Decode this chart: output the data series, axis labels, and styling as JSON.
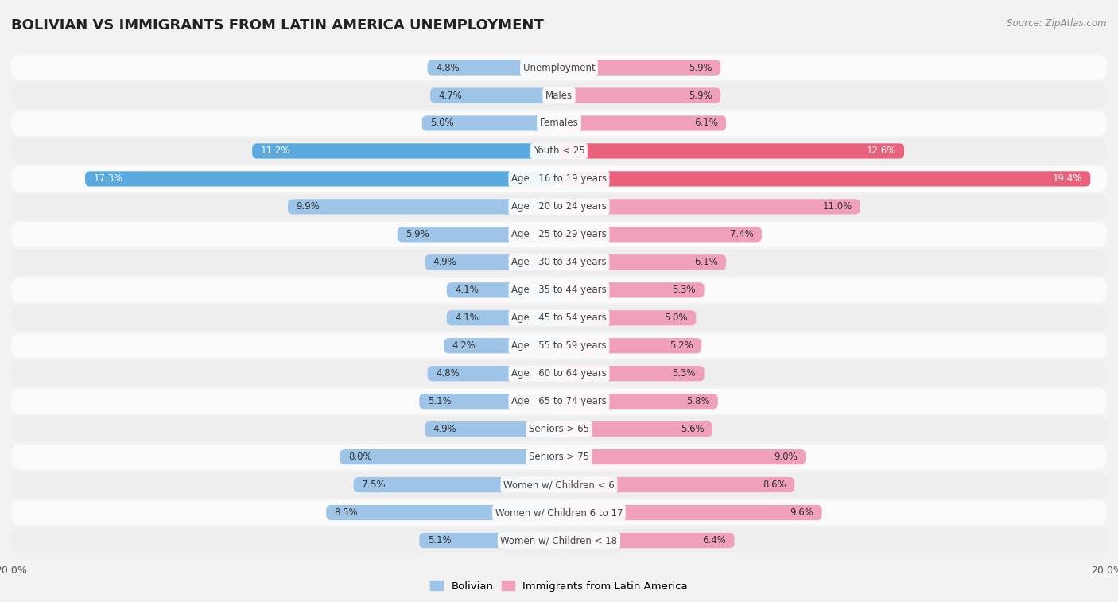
{
  "title": "BOLIVIAN VS IMMIGRANTS FROM LATIN AMERICA UNEMPLOYMENT",
  "source": "Source: ZipAtlas.com",
  "categories": [
    "Unemployment",
    "Males",
    "Females",
    "Youth < 25",
    "Age | 16 to 19 years",
    "Age | 20 to 24 years",
    "Age | 25 to 29 years",
    "Age | 30 to 34 years",
    "Age | 35 to 44 years",
    "Age | 45 to 54 years",
    "Age | 55 to 59 years",
    "Age | 60 to 64 years",
    "Age | 65 to 74 years",
    "Seniors > 65",
    "Seniors > 75",
    "Women w/ Children < 6",
    "Women w/ Children 6 to 17",
    "Women w/ Children < 18"
  ],
  "bolivian": [
    4.8,
    4.7,
    5.0,
    11.2,
    17.3,
    9.9,
    5.9,
    4.9,
    4.1,
    4.1,
    4.2,
    4.8,
    5.1,
    4.9,
    8.0,
    7.5,
    8.5,
    5.1
  ],
  "immigrants": [
    5.9,
    5.9,
    6.1,
    12.6,
    19.4,
    11.0,
    7.4,
    6.1,
    5.3,
    5.0,
    5.2,
    5.3,
    5.8,
    5.6,
    9.0,
    8.6,
    9.6,
    6.4
  ],
  "bolivian_color": "#9ec5e8",
  "immigrants_color": "#f0a0b8",
  "bolivian_strong_color": "#5aaae0",
  "immigrants_strong_color": "#e8607a",
  "background_color": "#f2f2f2",
  "row_color_light": "#fafafa",
  "row_color_dark": "#eeeeee",
  "max_val": 20.0,
  "legend_bolivian": "Bolivian",
  "legend_immigrants": "Immigrants from Latin America",
  "title_fontsize": 13,
  "label_fontsize": 8.5,
  "tick_fontsize": 9
}
